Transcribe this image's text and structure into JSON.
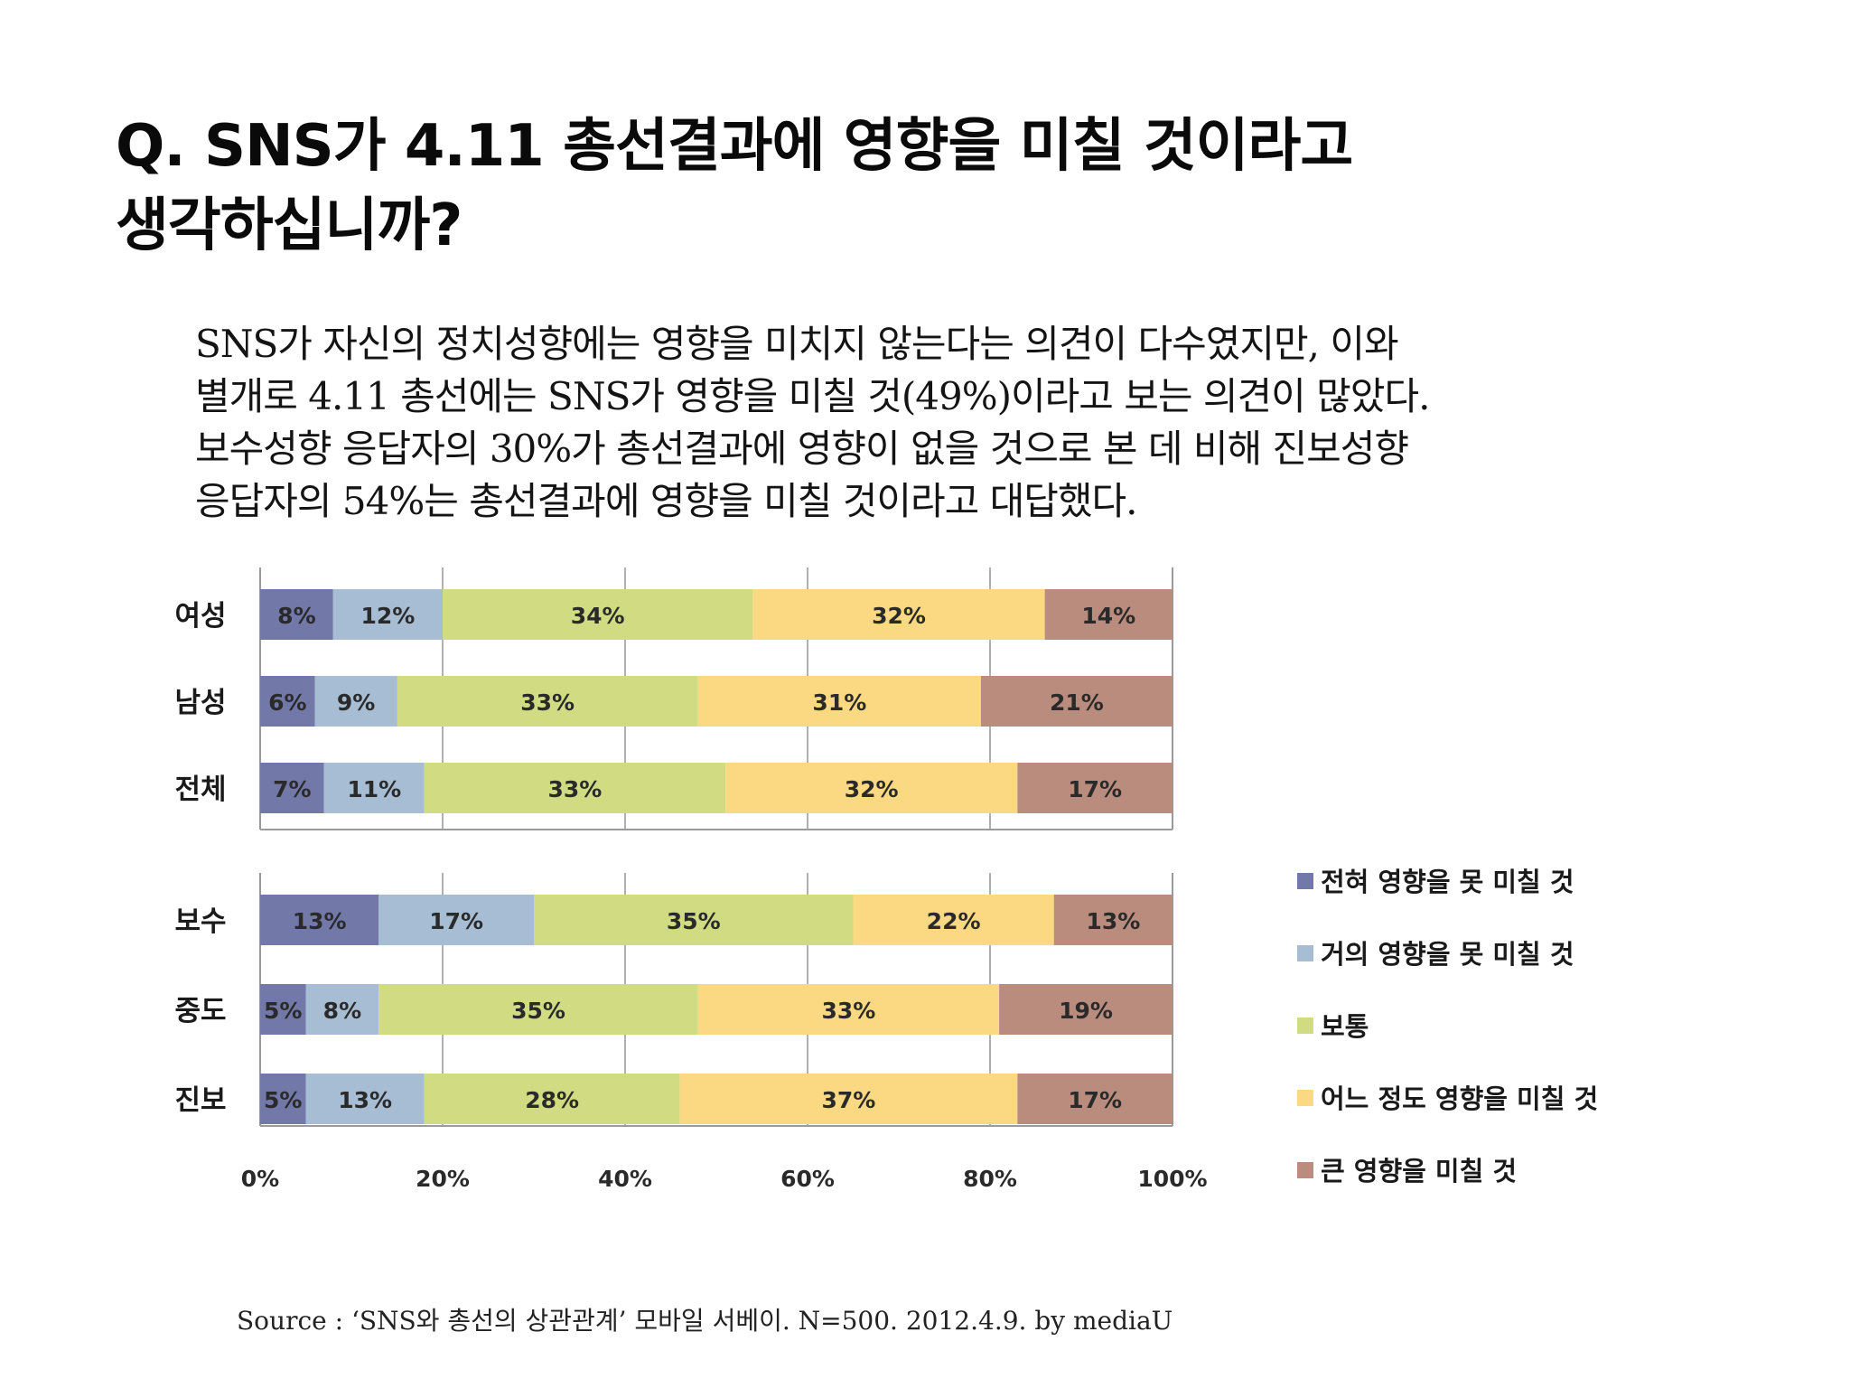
{
  "title_lines": [
    "Q. SNS가 4.11 총선결과에 영향을 미칠 것이라고",
    "생각하십니까?"
  ],
  "body_lines": [
    "SNS가 자신의 정치성향에는 영향을 미치지 않는다는 의견이 다수였지만, 이와",
    "별개로 4.11 총선에는 SNS가 영향을 미칠 것(49%)이라고 보는 의견이 많았다.",
    "보수성향 응답자의 30%가 총선결과에 영향이 없을 것으로 본 데 비해 진보성향",
    "응답자의 54%는 총선결과에 영향을 미칠 것이라고 대답했다."
  ],
  "source": "Source : ‘SNS와 총선의 상관관계’ 모바일 서베이. N=500. 2012.4.9. by mediaU",
  "chart_data": {
    "type": "bar",
    "orientation": "horizontal",
    "stacked": "percent",
    "xlim": [
      0,
      100
    ],
    "xticks": [
      "0%",
      "20%",
      "40%",
      "60%",
      "80%",
      "100%"
    ],
    "grid": true,
    "legend_position": "right",
    "series": [
      {
        "name": "전혀 영향을 못 미칠 것",
        "color": "#7279a8"
      },
      {
        "name": "거의 영향을 못 미칠 것",
        "color": "#a7bdd4"
      },
      {
        "name": "보통",
        "color": "#d1dc82"
      },
      {
        "name": "어느 정도 영향을 미칠 것",
        "color": "#fbd982"
      },
      {
        "name": "큰 영향을 미칠 것",
        "color": "#b98c7d"
      }
    ],
    "groups": [
      {
        "categories": [
          "여성",
          "남성",
          "전체"
        ],
        "values": [
          [
            8,
            12,
            34,
            32,
            14
          ],
          [
            6,
            9,
            33,
            31,
            21
          ],
          [
            7,
            11,
            33,
            32,
            17
          ]
        ]
      },
      {
        "categories": [
          "보수",
          "중도",
          "진보"
        ],
        "values": [
          [
            13,
            17,
            35,
            22,
            13
          ],
          [
            5,
            8,
            35,
            33,
            19
          ],
          [
            5,
            13,
            28,
            37,
            17
          ]
        ]
      }
    ]
  }
}
